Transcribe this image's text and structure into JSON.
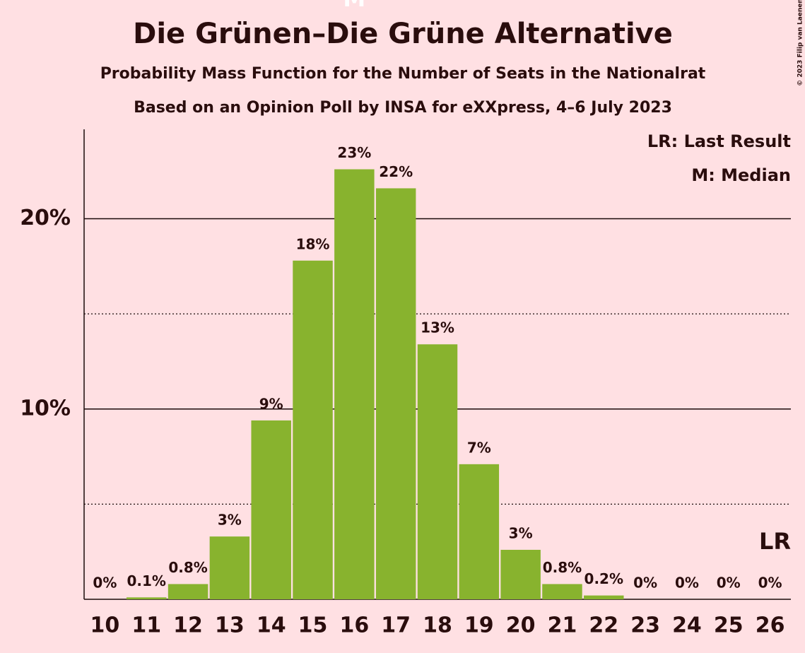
{
  "chart_data": {
    "type": "bar",
    "title": "Die Grünen–Die Grüne Alternative",
    "subtitle": "Probability Mass Function for the Number of Seats in the Nationalrat",
    "subtitle2": "Based on an Opinion Poll by INSA for eXXpress, 4–6 July 2023",
    "categories": [
      "10",
      "11",
      "12",
      "13",
      "14",
      "15",
      "16",
      "17",
      "18",
      "19",
      "20",
      "21",
      "22",
      "23",
      "24",
      "25",
      "26"
    ],
    "values": [
      0,
      0.1,
      0.8,
      3.3,
      9.4,
      17.8,
      22.6,
      21.6,
      13.4,
      7.1,
      2.6,
      0.8,
      0.2,
      0,
      0,
      0,
      0
    ],
    "value_labels": [
      "0%",
      "0.1%",
      "0.8%",
      "3%",
      "9%",
      "18%",
      "23%",
      "22%",
      "13%",
      "7%",
      "3%",
      "0.8%",
      "0.2%",
      "0%",
      "0%",
      "0%",
      "0%"
    ],
    "color": "#88b32e",
    "ylim": [
      0,
      24.7
    ],
    "yticks": [
      {
        "value": 10,
        "label": "10%"
      },
      {
        "value": 20,
        "label": "20%"
      }
    ],
    "minor_yticks": [
      5,
      15
    ],
    "grid": true,
    "legend": [
      "LR: Last Result",
      "M: Median"
    ],
    "annotations": [
      {
        "label": "M",
        "category": "16"
      },
      {
        "label": "LR",
        "category": "26"
      }
    ],
    "copyright": "© 2023 Filip van Laenen"
  }
}
